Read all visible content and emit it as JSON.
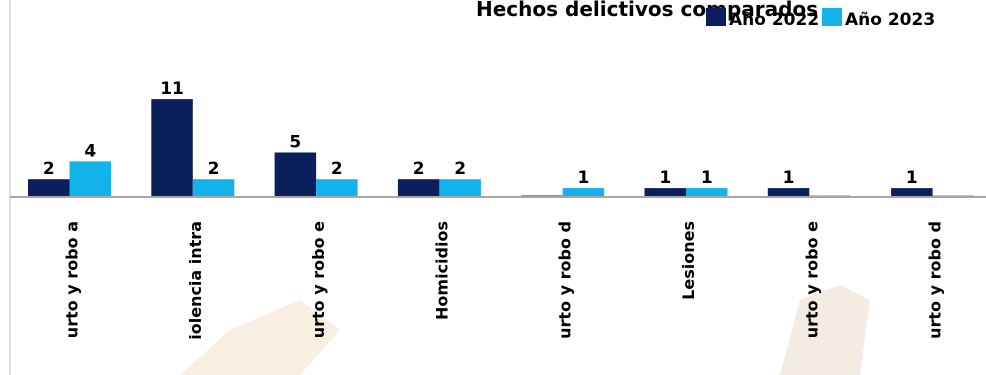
{
  "chart_data": {
    "type": "bar",
    "title": "Hechos delictivos comparados",
    "categories": [
      "urto y robo a",
      "iolencia intra",
      "urto y robo e",
      "Homicidios",
      "urto y robo d",
      "Lesiones",
      "urto y robo e",
      "urto y robo d"
    ],
    "series": [
      {
        "name": "Año 2022",
        "color": "#0b1f5c",
        "values": [
          2,
          11,
          5,
          2,
          0,
          1,
          1,
          1
        ],
        "labels": [
          "2",
          "11",
          "5",
          "2",
          "",
          "1",
          "1",
          "1"
        ]
      },
      {
        "name": "Año 2023",
        "color": "#12b3ea",
        "values": [
          4,
          2,
          2,
          2,
          1,
          1,
          0,
          0
        ],
        "labels": [
          "4",
          "2",
          "2",
          "2",
          "1",
          "1",
          "",
          ""
        ]
      }
    ],
    "ylim": [
      0,
      12
    ],
    "grid": false,
    "legend_position": "top-right"
  }
}
